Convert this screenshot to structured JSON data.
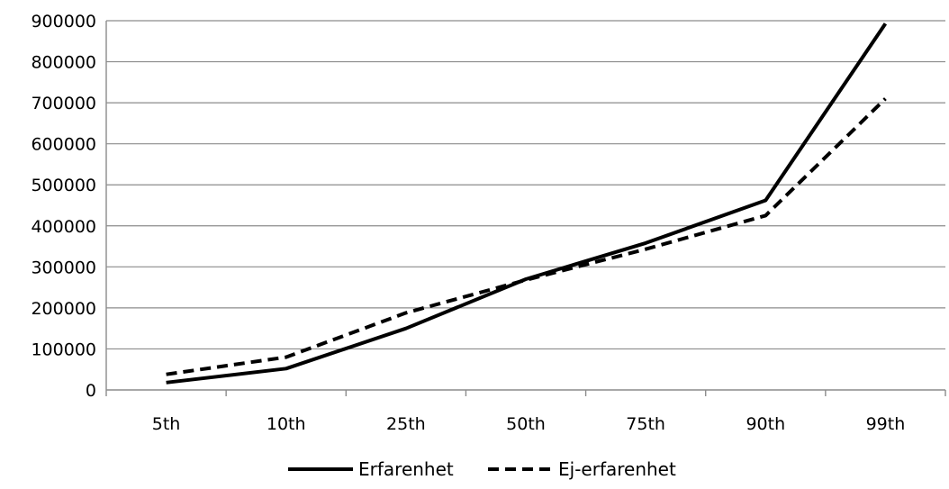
{
  "chart_data": {
    "type": "line",
    "title": "",
    "xlabel": "",
    "ylabel": "",
    "categories": [
      "5th",
      "10th",
      "25th",
      "50th",
      "75th",
      "90th",
      "99th"
    ],
    "ylim": [
      0,
      900000
    ],
    "yticks": [
      0,
      100000,
      200000,
      300000,
      400000,
      500000,
      600000,
      700000,
      800000,
      900000
    ],
    "grid": true,
    "legend_position": "bottom",
    "series": [
      {
        "name": "Erfarenhet",
        "style": "solid",
        "color": "#000000",
        "values": [
          18000,
          52000,
          150000,
          270000,
          358000,
          462000,
          893000
        ]
      },
      {
        "name": "Ej-erfarenhet",
        "style": "dashed",
        "color": "#000000",
        "values": [
          38000,
          80000,
          188000,
          268000,
          343000,
          425000,
          710000
        ]
      }
    ]
  }
}
